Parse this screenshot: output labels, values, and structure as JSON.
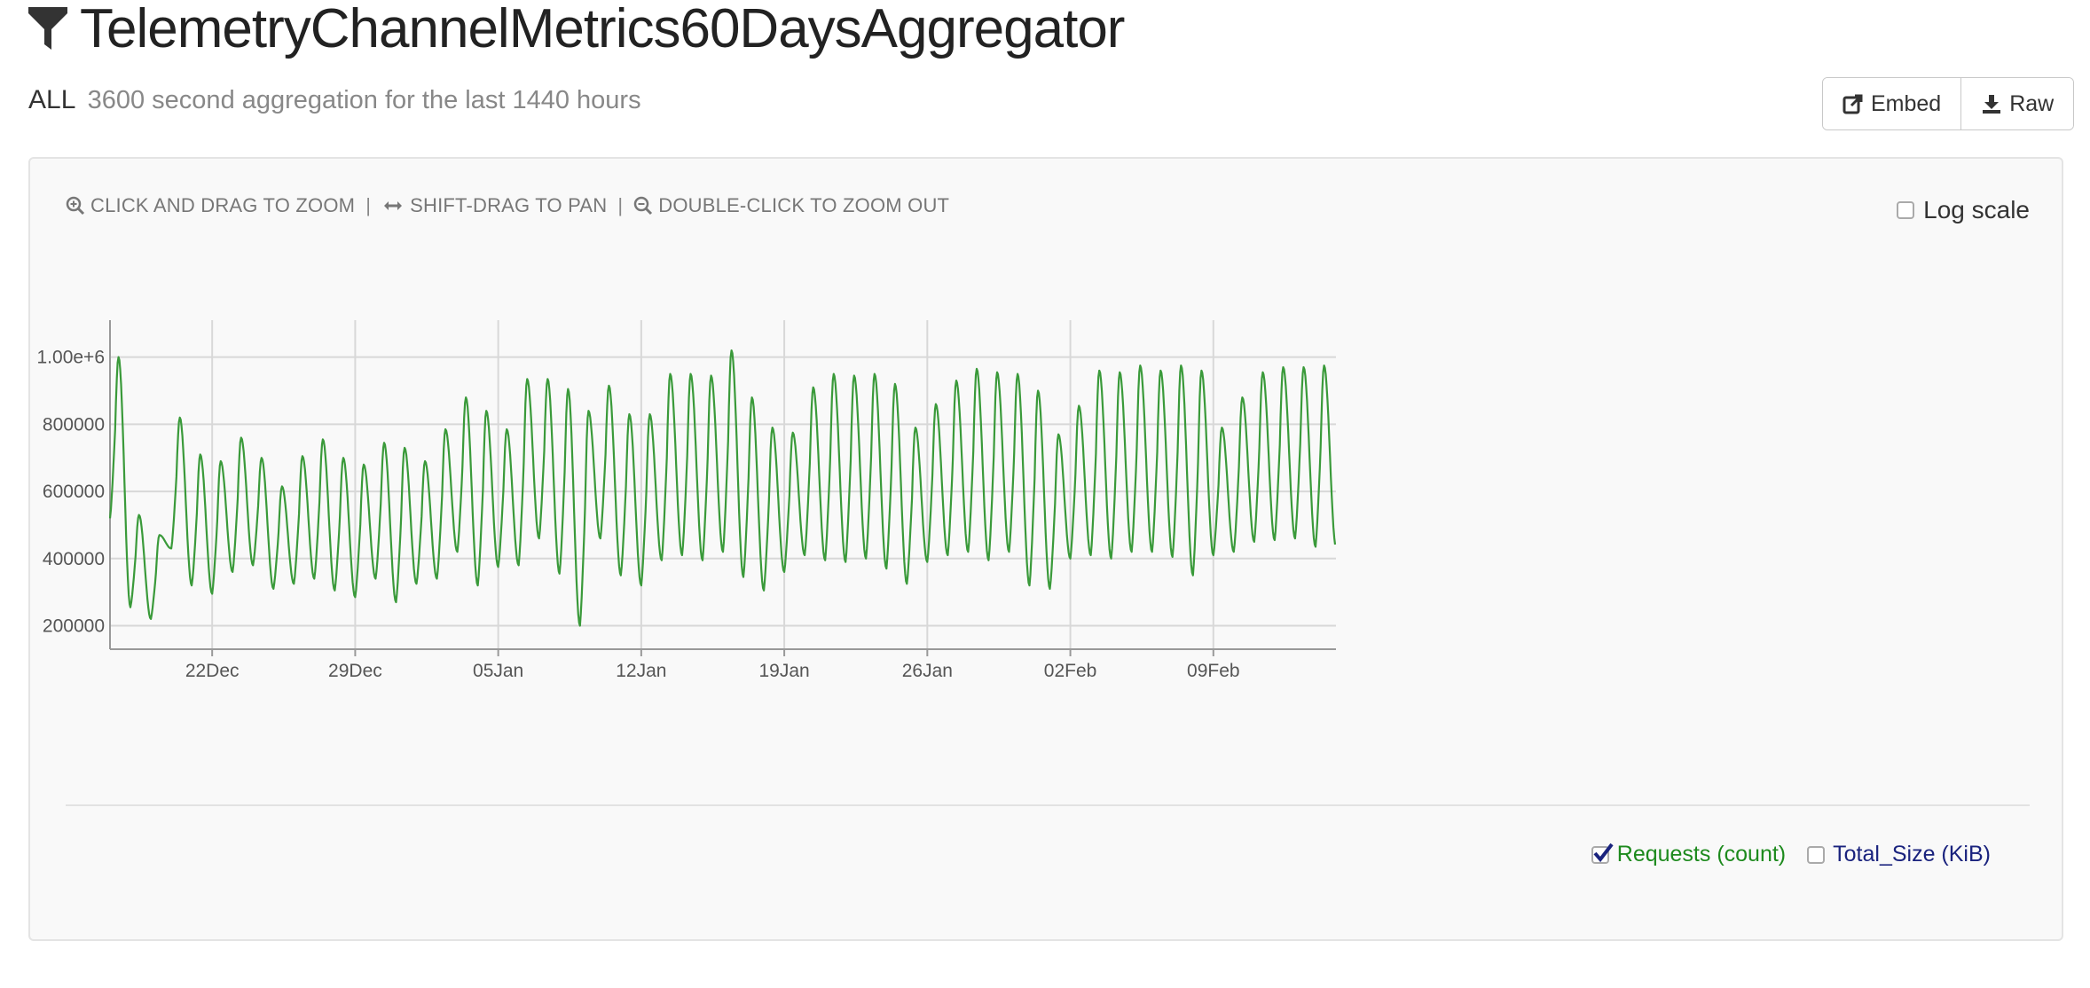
{
  "header": {
    "title": "TelemetryChannelMetrics60DaysAggregator",
    "subtitle_main": "ALL",
    "subtitle_desc": "3600 second aggregation for the last 1440 hours",
    "embed_label": "Embed",
    "raw_label": "Raw"
  },
  "hints": {
    "zoom": "CLICK AND DRAG TO ZOOM",
    "pan": "SHIFT-DRAG TO PAN",
    "zoom_out": "DOUBLE-CLICK TO ZOOM OUT",
    "separator": "|"
  },
  "log_scale": {
    "label": "Log scale",
    "checked": false
  },
  "colors": {
    "series": "#3a9a3a",
    "legend_green": "#1d8a1d",
    "legend_navy": "#1a237e"
  },
  "legend": {
    "items": [
      {
        "label": "Requests (count)",
        "checked": true
      },
      {
        "label": "Total_Size (KiB)",
        "checked": false
      }
    ]
  },
  "chart_data": {
    "type": "line",
    "title": "",
    "xlabel": "",
    "ylabel": "",
    "x_start": "2017-12-17",
    "x_end": "2018-02-15",
    "x_ticks": [
      {
        "date": "2017-12-22",
        "label": "22Dec"
      },
      {
        "date": "2017-12-29",
        "label": "29Dec"
      },
      {
        "date": "2018-01-05",
        "label": "05Jan"
      },
      {
        "date": "2018-01-12",
        "label": "12Jan"
      },
      {
        "date": "2018-01-19",
        "label": "19Jan"
      },
      {
        "date": "2018-01-26",
        "label": "26Jan"
      },
      {
        "date": "2018-02-02",
        "label": "02Feb"
      },
      {
        "date": "2018-02-09",
        "label": "09Feb"
      }
    ],
    "y_ticks": [
      {
        "value": 200000,
        "label": "200000"
      },
      {
        "value": 400000,
        "label": "400000"
      },
      {
        "value": 600000,
        "label": "600000"
      },
      {
        "value": 800000,
        "label": "800000"
      },
      {
        "value": 1000000,
        "label": "1.00e+6"
      }
    ],
    "ylim": [
      130000,
      1110000
    ],
    "grid": true,
    "series": [
      {
        "name": "Requests (count)",
        "sampling": "daily",
        "start": "2017-12-17",
        "daily_peaks": [
          1000000,
          530000,
          470000,
          820000,
          710000,
          690000,
          760000,
          700000,
          615000,
          705000,
          755000,
          700000,
          680000,
          745000,
          730000,
          690000,
          785000,
          880000,
          840000,
          785000,
          935000,
          935000,
          905000,
          840000,
          915000,
          830000,
          830000,
          950000,
          950000,
          945000,
          1020000,
          880000,
          790000,
          775000,
          910000,
          950000,
          945000,
          950000,
          920000,
          790000,
          860000,
          930000,
          965000,
          955000,
          950000,
          900000,
          770000,
          855000,
          960000,
          955000,
          975000,
          960000,
          975000,
          960000,
          790000,
          880000,
          955000,
          970000,
          970000,
          975000
        ],
        "daily_troughs": [
          520000,
          255000,
          220000,
          430000,
          320000,
          295000,
          360000,
          380000,
          310000,
          325000,
          340000,
          305000,
          285000,
          340000,
          270000,
          325000,
          340000,
          420000,
          320000,
          375000,
          380000,
          460000,
          355000,
          200000,
          460000,
          350000,
          320000,
          395000,
          410000,
          395000,
          420000,
          345000,
          305000,
          360000,
          410000,
          395000,
          390000,
          400000,
          370000,
          325000,
          390000,
          410000,
          420000,
          395000,
          420000,
          320000,
          310000,
          400000,
          410000,
          400000,
          420000,
          420000,
          405000,
          350000,
          410000,
          420000,
          450000,
          455000,
          460000,
          435000
        ]
      }
    ]
  }
}
